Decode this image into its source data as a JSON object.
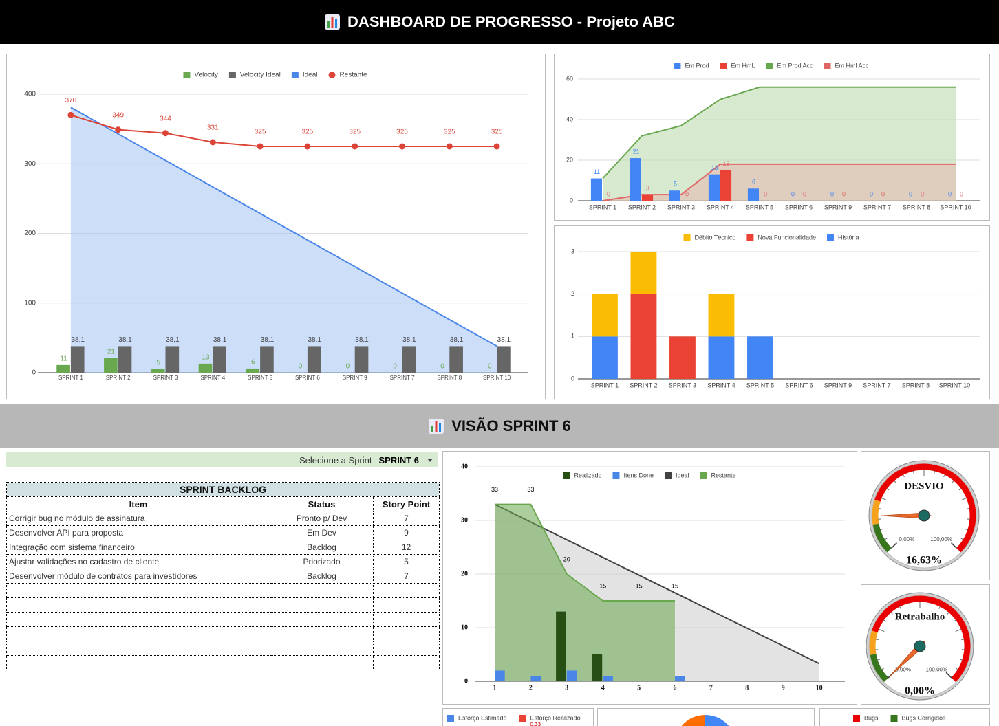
{
  "header": {
    "title": "DASHBOARD DE PROGRESSO - Projeto ABC"
  },
  "section": {
    "title": "VISÃO SPRINT 6"
  },
  "selector": {
    "label": "Selecione a Sprint",
    "value": "SPRINT 6"
  },
  "table": {
    "title": "SPRINT BACKLOG",
    "columns": [
      "Item",
      "Status",
      "Story Point"
    ],
    "rows": [
      [
        "Corrigir bug no módulo de assinatura",
        "Pronto p/ Dev",
        7
      ],
      [
        "Desenvolver API para proposta",
        "Em Dev",
        9
      ],
      [
        "Integração com sistema financeiro",
        "Backlog",
        12
      ],
      [
        "Ajustar validações no cadastro de cliente",
        "Priorizado",
        5
      ],
      [
        "Desenvolver módulo de contratos para investidores",
        "Backlog",
        7
      ]
    ]
  },
  "chart_data": [
    {
      "type": "combo",
      "categories": [
        "SPRINT 1",
        "SPRINT 2",
        "SPRINT 3",
        "SPRINT 4",
        "SPRINT 5",
        "SPRINT 6",
        "SPRINT 9",
        "SPRINT 7",
        "SPRINT 8",
        "SPRINT 10"
      ],
      "ylim": [
        0,
        400
      ],
      "yticks": [
        0,
        100,
        200,
        300,
        400
      ],
      "grid": true,
      "legend": "top",
      "series": [
        {
          "name": "Velocity",
          "kind": "bar",
          "color": "#6aa84f",
          "data_labels": true,
          "values": [
            11,
            21,
            5,
            13,
            6,
            0,
            0,
            0,
            0,
            0
          ]
        },
        {
          "name": "Velocity Ideal",
          "kind": "bar",
          "color": "#666666",
          "data_labels": true,
          "label_color": "#444444",
          "values": [
            38.1,
            38.1,
            38.1,
            38.1,
            38.1,
            38.1,
            38.1,
            38.1,
            38.1,
            38.1
          ],
          "value_labels": [
            "38,1",
            "38,1",
            "38,1",
            "38,1",
            "38,1",
            "38,1",
            "38,1",
            "38,1",
            "38,1",
            "38,1"
          ]
        },
        {
          "name": "Ideal",
          "kind": "area",
          "color": "#4a86e8",
          "fill": "#a4c2f4",
          "values": [
            381,
            342.9,
            304.8,
            266.7,
            228.6,
            190.5,
            152.4,
            114.3,
            76.2,
            38.1
          ]
        },
        {
          "name": "Restante",
          "kind": "line",
          "points": true,
          "color": "#db4437",
          "data_labels": true,
          "values": [
            370,
            349,
            344,
            331,
            325,
            325,
            325,
            325,
            325,
            325
          ]
        }
      ]
    },
    {
      "type": "combo",
      "categories": [
        "SPRINT 1",
        "SPRINT 2",
        "SPRINT 3",
        "SPRINT 4",
        "SPRINT 5",
        "SPRINT 6",
        "SPRINT 9",
        "SPRINT 7",
        "SPRINT 8",
        "SPRINT 10"
      ],
      "ylim": [
        0,
        60
      ],
      "yticks": [
        0,
        20,
        40,
        60
      ],
      "grid": true,
      "legend": "top",
      "series": [
        {
          "name": "Em Prod",
          "kind": "bar",
          "color": "#4285f4",
          "data_labels": true,
          "values": [
            11,
            21,
            5,
            13,
            6,
            0,
            0,
            0,
            0,
            0
          ]
        },
        {
          "name": "Em HmL",
          "kind": "bar",
          "color": "#ea4335",
          "data_labels": true,
          "label_color": "#e06666",
          "values": [
            0,
            3,
            0,
            15,
            0,
            0,
            0,
            0,
            0,
            0
          ]
        },
        {
          "name": "Em Prod Acc",
          "kind": "area",
          "color": "#6aa84f",
          "fill": "#b6d7a8",
          "values": [
            11,
            32,
            37,
            50,
            56,
            56,
            56,
            56,
            56,
            56
          ]
        },
        {
          "name": "Em Hml Acc",
          "kind": "area",
          "color": "#e06666",
          "fill": "#e6b8af",
          "values": [
            0,
            3,
            3,
            18,
            18,
            18,
            18,
            18,
            18,
            18
          ]
        }
      ]
    },
    {
      "type": "stacked_bar",
      "categories": [
        "SPRINT 1",
        "SPRINT 2",
        "SPRINT 3",
        "SPRINT 4",
        "SPRINT 5",
        "SPRINT 6",
        "SPRINT 9",
        "SPRINT 7",
        "SPRINT 8",
        "SPRINT 10"
      ],
      "ylim": [
        0,
        3
      ],
      "yticks": [
        0,
        1,
        2,
        3
      ],
      "grid": true,
      "legend": "top",
      "series": [
        {
          "name": "Débito Técnico",
          "color": "#fbbc04",
          "values": [
            1,
            1,
            0,
            1,
            0,
            0,
            0,
            0,
            0,
            0
          ]
        },
        {
          "name": "Nova Funcionalidade",
          "color": "#ea4335",
          "values": [
            0,
            2,
            1,
            0,
            0,
            0,
            0,
            0,
            0,
            0
          ]
        },
        {
          "name": "História",
          "color": "#4285f4",
          "values": [
            1,
            0,
            0,
            1,
            1,
            0,
            0,
            0,
            0,
            0
          ]
        }
      ]
    },
    {
      "type": "combo",
      "categories": [
        "1",
        "2",
        "3",
        "4",
        "5",
        "6",
        "7",
        "8",
        "9",
        "10"
      ],
      "ylim": [
        0,
        40
      ],
      "yticks": [
        0,
        10,
        20,
        30,
        40
      ],
      "grid": true,
      "legend": "top",
      "series": [
        {
          "name": "Realizado",
          "kind": "bar",
          "color": "#274e13",
          "values": [
            0,
            0,
            13,
            5,
            0,
            0,
            0,
            0,
            0,
            0
          ]
        },
        {
          "name": "Itens Done",
          "kind": "bar",
          "color": "#4a86e8",
          "values": [
            2,
            1,
            2,
            1,
            0,
            1,
            0,
            0,
            0,
            0
          ]
        },
        {
          "name": "Ideal",
          "kind": "area",
          "color": "#434343",
          "fill": "#cccccc",
          "values": [
            33,
            29.7,
            26.4,
            23.1,
            19.8,
            16.5,
            13.2,
            9.9,
            6.6,
            3.3
          ]
        },
        {
          "name": "Restante",
          "kind": "area",
          "color": "#6aa84f",
          "fill": "#6aa84f",
          "data_labels": true,
          "label_color": "#000000",
          "values": [
            33,
            33,
            20,
            15,
            15,
            15,
            null,
            null,
            null,
            null
          ]
        }
      ]
    },
    {
      "type": "gauge",
      "title": "DESVIO",
      "value": 16.63,
      "value_label": "16,63%",
      "ylim": [
        0,
        100
      ],
      "yticks": [
        {
          "value": 0,
          "label": "0,00%"
        },
        {
          "value": 100,
          "label": "100,00%"
        }
      ]
    },
    {
      "type": "gauge",
      "title": "Retrabalho",
      "value": 0,
      "value_label": "0,00%",
      "ylim": [
        0,
        100
      ],
      "yticks": [
        {
          "value": 0,
          "label": "0,00%"
        },
        {
          "value": 100,
          "label": "100,00%"
        }
      ]
    }
  ],
  "bottom_panels": [
    {
      "legend": [
        {
          "name": "Esforço Estimado",
          "color": "#4a86e8"
        },
        {
          "name": "Esforço Realizado",
          "color": "#ea4335"
        }
      ],
      "label": "0,33"
    },
    {
      "legend": [
        {
          "name": "Bugs",
          "color": "#ea0000"
        },
        {
          "name": "Bugs Corrigidos",
          "color": "#38761d"
        }
      ]
    }
  ]
}
